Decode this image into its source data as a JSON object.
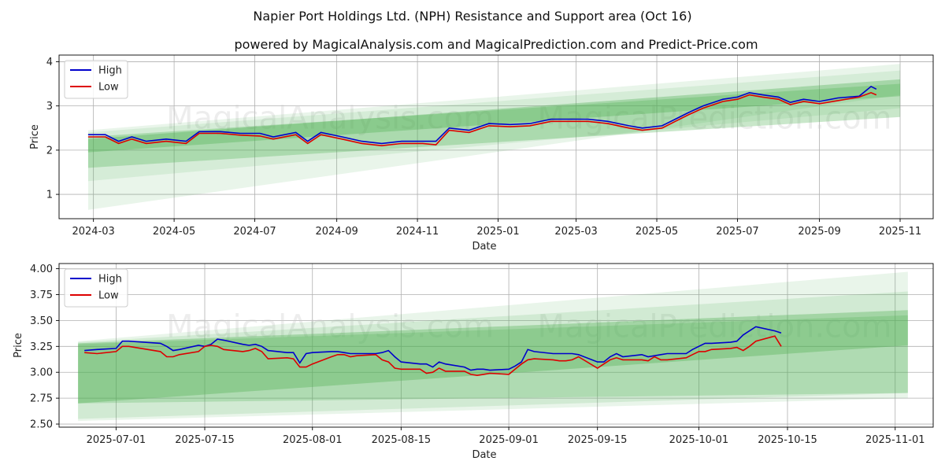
{
  "title": "Napier Port Holdings Ltd. (NPH) Resistance and Support area (Oct 16)",
  "subtitle": "powered by MagicalAnalysis.com and MagicalPrediction.com and Predict-Price.com",
  "watermarks": [
    "MagicalAnalysis.com",
    "MagicalPrediction.com"
  ],
  "colors": {
    "high": "#0000cc",
    "low": "#dd0000",
    "band": "#4caf50",
    "grid": "#b0b0b0"
  },
  "chart_data": [
    {
      "type": "line",
      "xlabel": "Date",
      "ylabel": "Price",
      "xlim": [
        "2024-02-04",
        "2025-11-26"
      ],
      "ylim": [
        0.45,
        4.15
      ],
      "yticks": [
        1,
        2,
        3,
        4
      ],
      "xticks": [
        "2024-03",
        "2024-05",
        "2024-07",
        "2024-09",
        "2024-11",
        "2025-01",
        "2025-03",
        "2025-05",
        "2025-07",
        "2025-09",
        "2025-11"
      ],
      "legend": {
        "placement": "top-left",
        "entries": [
          "High",
          "Low"
        ]
      },
      "bands": [
        {
          "x0": "2024-02-26",
          "x1": "2025-11-01",
          "upper0": 2.45,
          "upper1": 3.95,
          "lower0": 0.65,
          "lower1": 3.25,
          "opacity": 0.12
        },
        {
          "x0": "2024-02-26",
          "x1": "2025-11-01",
          "upper0": 2.4,
          "upper1": 3.8,
          "lower0": 1.3,
          "lower1": 2.95,
          "opacity": 0.12
        },
        {
          "x0": "2024-02-26",
          "x1": "2025-11-01",
          "upper0": 2.3,
          "upper1": 3.5,
          "lower0": 1.6,
          "lower1": 2.75,
          "opacity": 0.3
        },
        {
          "x0": "2024-02-26",
          "x1": "2025-11-01",
          "upper0": 2.25,
          "upper1": 3.6,
          "lower0": 1.95,
          "lower1": 3.22,
          "opacity": 0.35
        }
      ],
      "series": [
        {
          "name": "High",
          "x": [
            "2024-02-26",
            "2024-03-10",
            "2024-03-20",
            "2024-03-30",
            "2024-04-10",
            "2024-04-25",
            "2024-05-10",
            "2024-05-20",
            "2024-06-05",
            "2024-06-20",
            "2024-07-05",
            "2024-07-15",
            "2024-08-01",
            "2024-08-10",
            "2024-08-20",
            "2024-09-05",
            "2024-09-20",
            "2024-10-05",
            "2024-10-20",
            "2024-11-05",
            "2024-11-15",
            "2024-11-25",
            "2024-12-10",
            "2024-12-25",
            "2025-01-10",
            "2025-01-25",
            "2025-02-10",
            "2025-02-25",
            "2025-03-10",
            "2025-03-25",
            "2025-04-10",
            "2025-04-20",
            "2025-05-05",
            "2025-05-15",
            "2025-05-25",
            "2025-06-05",
            "2025-06-20",
            "2025-07-01",
            "2025-07-10",
            "2025-07-20",
            "2025-08-01",
            "2025-08-10",
            "2025-08-20",
            "2025-09-01",
            "2025-09-15",
            "2025-10-01",
            "2025-10-10",
            "2025-10-14"
          ],
          "values": [
            2.35,
            2.35,
            2.2,
            2.3,
            2.2,
            2.25,
            2.2,
            2.42,
            2.42,
            2.38,
            2.38,
            2.3,
            2.4,
            2.2,
            2.4,
            2.3,
            2.2,
            2.15,
            2.2,
            2.2,
            2.2,
            2.5,
            2.45,
            2.6,
            2.58,
            2.6,
            2.7,
            2.7,
            2.7,
            2.65,
            2.55,
            2.5,
            2.55,
            2.7,
            2.85,
            3.0,
            3.15,
            3.2,
            3.3,
            3.25,
            3.2,
            3.08,
            3.15,
            3.1,
            3.18,
            3.22,
            3.44,
            3.38
          ]
        },
        {
          "name": "Low",
          "x": [
            "2024-02-26",
            "2024-03-10",
            "2024-03-20",
            "2024-03-30",
            "2024-04-10",
            "2024-04-25",
            "2024-05-10",
            "2024-05-20",
            "2024-06-05",
            "2024-06-20",
            "2024-07-05",
            "2024-07-15",
            "2024-08-01",
            "2024-08-10",
            "2024-08-20",
            "2024-09-05",
            "2024-09-20",
            "2024-10-05",
            "2024-10-20",
            "2024-11-05",
            "2024-11-15",
            "2024-11-25",
            "2024-12-10",
            "2024-12-25",
            "2025-01-10",
            "2025-01-25",
            "2025-02-10",
            "2025-02-25",
            "2025-03-10",
            "2025-03-25",
            "2025-04-10",
            "2025-04-20",
            "2025-05-05",
            "2025-05-15",
            "2025-05-25",
            "2025-06-05",
            "2025-06-20",
            "2025-07-01",
            "2025-07-10",
            "2025-07-20",
            "2025-08-01",
            "2025-08-10",
            "2025-08-20",
            "2025-09-01",
            "2025-09-15",
            "2025-10-01",
            "2025-10-10",
            "2025-10-14"
          ],
          "values": [
            2.3,
            2.3,
            2.15,
            2.25,
            2.15,
            2.2,
            2.15,
            2.38,
            2.38,
            2.34,
            2.32,
            2.25,
            2.35,
            2.15,
            2.35,
            2.25,
            2.15,
            2.1,
            2.15,
            2.15,
            2.12,
            2.45,
            2.4,
            2.55,
            2.53,
            2.55,
            2.65,
            2.65,
            2.65,
            2.6,
            2.5,
            2.45,
            2.5,
            2.65,
            2.8,
            2.95,
            3.1,
            3.15,
            3.25,
            3.2,
            3.15,
            3.03,
            3.1,
            3.05,
            3.12,
            3.2,
            3.3,
            3.25
          ]
        }
      ]
    },
    {
      "type": "line",
      "xlabel": "Date",
      "ylabel": "Price",
      "xlim": [
        "2025-06-22",
        "2025-11-07"
      ],
      "ylim": [
        2.47,
        4.05
      ],
      "yticks": [
        2.5,
        2.75,
        3.0,
        3.25,
        3.5,
        3.75,
        4.0
      ],
      "ytick_labels": [
        "2.50",
        "2.75",
        "3.00",
        "3.25",
        "3.50",
        "3.75",
        "4.00"
      ],
      "xticks": [
        "2025-07-01",
        "2025-07-15",
        "2025-08-01",
        "2025-08-15",
        "2025-09-01",
        "2025-09-15",
        "2025-10-01",
        "2025-10-15",
        "2025-11-01"
      ],
      "legend": {
        "placement": "top-left",
        "entries": [
          "High",
          "Low"
        ]
      },
      "bands": [
        {
          "x0": "2025-06-25",
          "x1": "2025-11-03",
          "upper0": 3.3,
          "upper1": 3.97,
          "lower0": 2.53,
          "lower1": 2.75,
          "opacity": 0.12
        },
        {
          "x0": "2025-06-25",
          "x1": "2025-11-03",
          "upper0": 3.29,
          "upper1": 3.78,
          "lower0": 2.55,
          "lower1": 2.8,
          "opacity": 0.15
        },
        {
          "x0": "2025-06-25",
          "x1": "2025-11-03",
          "upper0": 3.28,
          "upper1": 3.6,
          "lower0": 2.7,
          "lower1": 3.26,
          "opacity": 0.35
        },
        {
          "x0": "2025-06-25",
          "x1": "2025-11-03",
          "upper0": 3.27,
          "upper1": 3.55,
          "lower0": 2.7,
          "lower1": 2.8,
          "opacity": 0.25
        }
      ],
      "series": [
        {
          "name": "High",
          "x": [
            "2025-06-26",
            "2025-06-28",
            "2025-07-01",
            "2025-07-02",
            "2025-07-03",
            "2025-07-08",
            "2025-07-09",
            "2025-07-10",
            "2025-07-11",
            "2025-07-14",
            "2025-07-15",
            "2025-07-16",
            "2025-07-17",
            "2025-07-18",
            "2025-07-21",
            "2025-07-22",
            "2025-07-23",
            "2025-07-24",
            "2025-07-25",
            "2025-07-28",
            "2025-07-29",
            "2025-07-30",
            "2025-07-31",
            "2025-08-01",
            "2025-08-04",
            "2025-08-05",
            "2025-08-06",
            "2025-08-07",
            "2025-08-08",
            "2025-08-11",
            "2025-08-12",
            "2025-08-13",
            "2025-08-14",
            "2025-08-15",
            "2025-08-18",
            "2025-08-19",
            "2025-08-20",
            "2025-08-21",
            "2025-08-22",
            "2025-08-25",
            "2025-08-26",
            "2025-08-27",
            "2025-08-28",
            "2025-08-29",
            "2025-09-01",
            "2025-09-02",
            "2025-09-03",
            "2025-09-04",
            "2025-09-05",
            "2025-09-08",
            "2025-09-09",
            "2025-09-10",
            "2025-09-11",
            "2025-09-12",
            "2025-09-15",
            "2025-09-16",
            "2025-09-17",
            "2025-09-18",
            "2025-09-19",
            "2025-09-22",
            "2025-09-23",
            "2025-09-24",
            "2025-09-25",
            "2025-09-26",
            "2025-09-29",
            "2025-09-30",
            "2025-10-01",
            "2025-10-02",
            "2025-10-03",
            "2025-10-06",
            "2025-10-07",
            "2025-10-08",
            "2025-10-09",
            "2025-10-10",
            "2025-10-13",
            "2025-10-14"
          ],
          "values": [
            3.21,
            3.22,
            3.23,
            3.3,
            3.3,
            3.28,
            3.25,
            3.21,
            3.22,
            3.26,
            3.25,
            3.27,
            3.32,
            3.31,
            3.27,
            3.26,
            3.27,
            3.25,
            3.21,
            3.19,
            3.19,
            3.09,
            3.18,
            3.19,
            3.2,
            3.2,
            3.19,
            3.18,
            3.18,
            3.18,
            3.19,
            3.21,
            3.15,
            3.1,
            3.08,
            3.08,
            3.05,
            3.1,
            3.08,
            3.05,
            3.02,
            3.03,
            3.03,
            3.02,
            3.03,
            3.06,
            3.1,
            3.22,
            3.2,
            3.18,
            3.18,
            3.18,
            3.18,
            3.17,
            3.1,
            3.1,
            3.15,
            3.18,
            3.15,
            3.17,
            3.15,
            3.16,
            3.17,
            3.18,
            3.18,
            3.22,
            3.25,
            3.28,
            3.28,
            3.29,
            3.3,
            3.36,
            3.4,
            3.44,
            3.4,
            3.38
          ]
        },
        {
          "name": "Low",
          "x": [
            "2025-06-26",
            "2025-06-28",
            "2025-07-01",
            "2025-07-02",
            "2025-07-03",
            "2025-07-08",
            "2025-07-09",
            "2025-07-10",
            "2025-07-11",
            "2025-07-14",
            "2025-07-15",
            "2025-07-16",
            "2025-07-17",
            "2025-07-18",
            "2025-07-21",
            "2025-07-22",
            "2025-07-23",
            "2025-07-24",
            "2025-07-25",
            "2025-07-28",
            "2025-07-29",
            "2025-07-30",
            "2025-07-31",
            "2025-08-01",
            "2025-08-04",
            "2025-08-05",
            "2025-08-06",
            "2025-08-07",
            "2025-08-08",
            "2025-08-11",
            "2025-08-12",
            "2025-08-13",
            "2025-08-14",
            "2025-08-15",
            "2025-08-18",
            "2025-08-19",
            "2025-08-20",
            "2025-08-21",
            "2025-08-22",
            "2025-08-25",
            "2025-08-26",
            "2025-08-27",
            "2025-08-28",
            "2025-08-29",
            "2025-09-01",
            "2025-09-02",
            "2025-09-03",
            "2025-09-04",
            "2025-09-05",
            "2025-09-08",
            "2025-09-09",
            "2025-09-10",
            "2025-09-11",
            "2025-09-12",
            "2025-09-15",
            "2025-09-16",
            "2025-09-17",
            "2025-09-18",
            "2025-09-19",
            "2025-09-22",
            "2025-09-23",
            "2025-09-24",
            "2025-09-25",
            "2025-09-26",
            "2025-09-29",
            "2025-09-30",
            "2025-10-01",
            "2025-10-02",
            "2025-10-03",
            "2025-10-06",
            "2025-10-07",
            "2025-10-08",
            "2025-10-09",
            "2025-10-10",
            "2025-10-13",
            "2025-10-14"
          ],
          "values": [
            3.19,
            3.18,
            3.2,
            3.25,
            3.25,
            3.2,
            3.15,
            3.15,
            3.17,
            3.2,
            3.25,
            3.26,
            3.25,
            3.22,
            3.2,
            3.21,
            3.23,
            3.2,
            3.13,
            3.14,
            3.13,
            3.05,
            3.05,
            3.08,
            3.15,
            3.17,
            3.17,
            3.15,
            3.16,
            3.17,
            3.12,
            3.1,
            3.04,
            3.03,
            3.03,
            2.99,
            3.0,
            3.04,
            3.01,
            3.01,
            2.98,
            2.97,
            2.98,
            2.99,
            2.98,
            3.03,
            3.08,
            3.12,
            3.13,
            3.12,
            3.11,
            3.11,
            3.12,
            3.15,
            3.04,
            3.08,
            3.12,
            3.14,
            3.12,
            3.12,
            3.11,
            3.15,
            3.12,
            3.12,
            3.14,
            3.17,
            3.2,
            3.2,
            3.22,
            3.23,
            3.24,
            3.21,
            3.25,
            3.3,
            3.35,
            3.25
          ]
        }
      ]
    }
  ]
}
